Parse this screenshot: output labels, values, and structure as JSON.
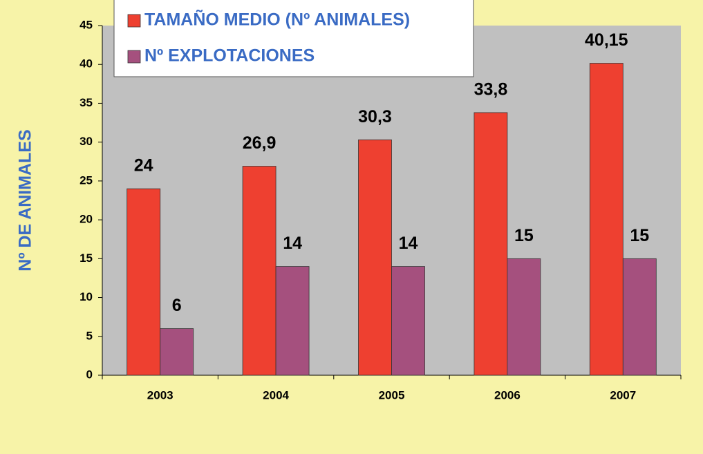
{
  "chart_data": {
    "type": "bar",
    "y_label": "Nº DE ANIMALES",
    "categories": [
      "2003",
      "2004",
      "2005",
      "2006",
      "2007"
    ],
    "series": [
      {
        "name": "TAMAÑO MEDIO (Nº ANIMALES)",
        "color": "#ee4030",
        "values": [
          24,
          26.9,
          30.3,
          33.8,
          40.15
        ],
        "value_labels": [
          "24",
          "26,9",
          "30,3",
          "33,8",
          "40,15"
        ]
      },
      {
        "name": "Nº EXPLOTACIONES",
        "color": "#a5507e",
        "values": [
          6,
          14,
          14,
          15,
          15
        ]
      }
    ],
    "ylim": [
      0,
      45
    ],
    "yticks": [
      0,
      5,
      10,
      15,
      20,
      25,
      30,
      35,
      40,
      45
    ],
    "grid": false,
    "legend": "top-left"
  }
}
